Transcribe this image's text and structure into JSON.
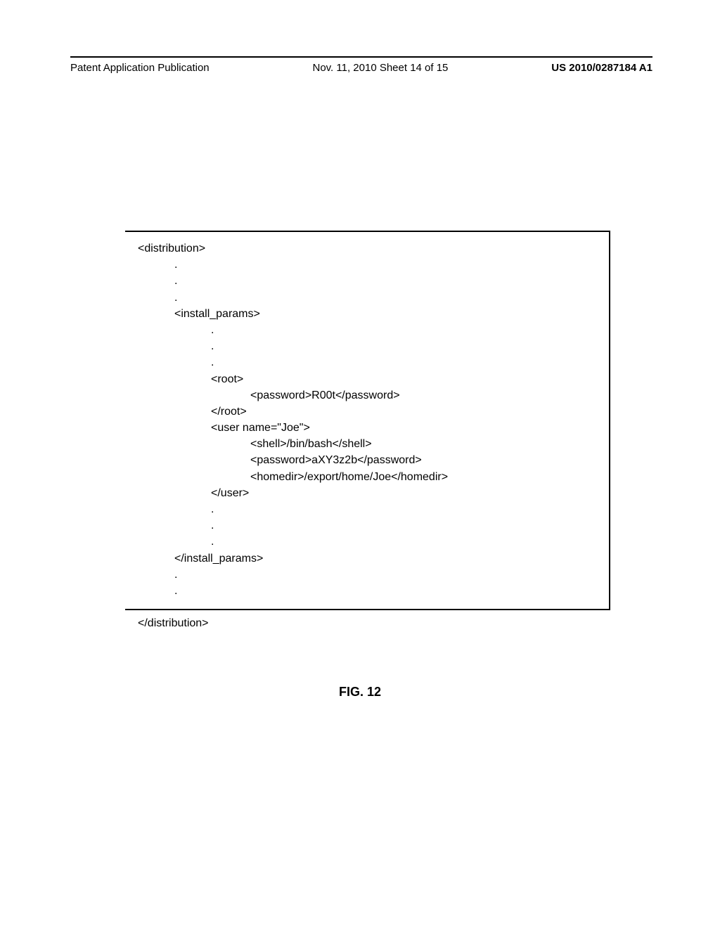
{
  "header": {
    "left": "Patent Application Publication",
    "mid": "Nov. 11, 2010  Sheet 14 of 15",
    "right": "US 2010/0287184 A1"
  },
  "code": {
    "l01": "<distribution>",
    "l02": ".",
    "l03": ".",
    "l04": ".",
    "l05": "<install_params>",
    "l06": ".",
    "l07": ".",
    "l08": ".",
    "l09": "<root>",
    "l10": "<password>R00t</password>",
    "l11": "</root>",
    "l12": "<user name=\"Joe\">",
    "l13": "<shell>/bin/bash</shell>",
    "l14": "<password>aXY3z2b</password>",
    "l15": "<homedir>/export/home/Joe</homedir>",
    "l16": "</user>",
    "l17": ".",
    "l18": ".",
    "l19": ".",
    "l20": "</install_params>",
    "l21": ".",
    "l22": ".",
    "l23": ".",
    "l24": "</distribution>"
  },
  "figure_label": "FIG. 12"
}
